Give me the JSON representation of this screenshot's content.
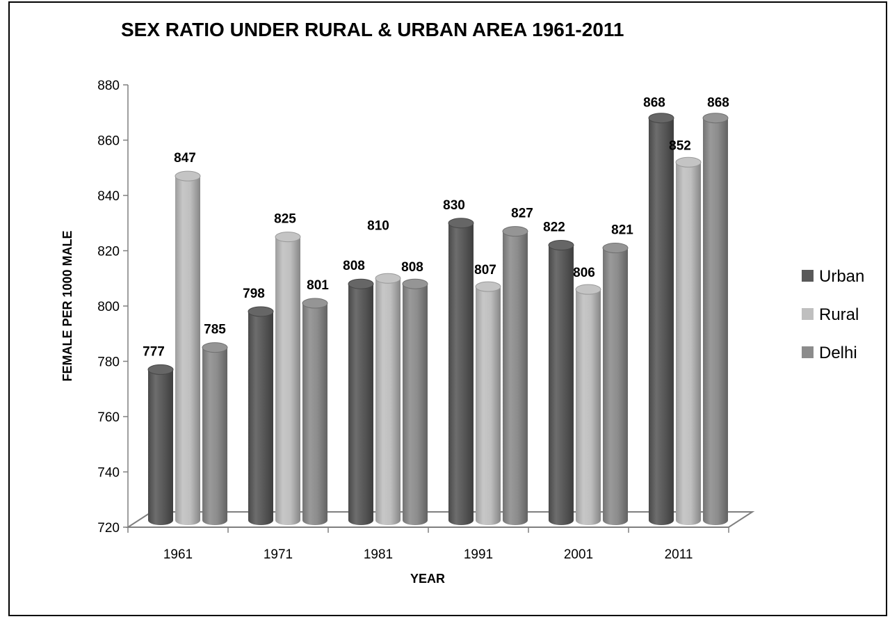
{
  "chart_data": {
    "type": "bar",
    "title": "SEX RATIO UNDER RURAL & URBAN AREA 1961-2011",
    "xlabel": "YEAR",
    "ylabel": "FEMALE PER 1000 MALE",
    "categories": [
      "1961",
      "1971",
      "1981",
      "1991",
      "2001",
      "2011"
    ],
    "ylim": [
      720,
      880
    ],
    "yticks": [
      720,
      740,
      760,
      780,
      800,
      820,
      840,
      860,
      880
    ],
    "grid": false,
    "legend_position": "right",
    "series": [
      {
        "name": "Urban",
        "color": "#595959",
        "values": [
          777,
          798,
          808,
          830,
          822,
          868
        ]
      },
      {
        "name": "Rural",
        "color": "#bfbfbf",
        "values": [
          847,
          825,
          810,
          807,
          806,
          852
        ]
      },
      {
        "name": "Delhi",
        "color": "#8c8c8c",
        "values": [
          785,
          801,
          808,
          827,
          821,
          868
        ]
      }
    ]
  }
}
